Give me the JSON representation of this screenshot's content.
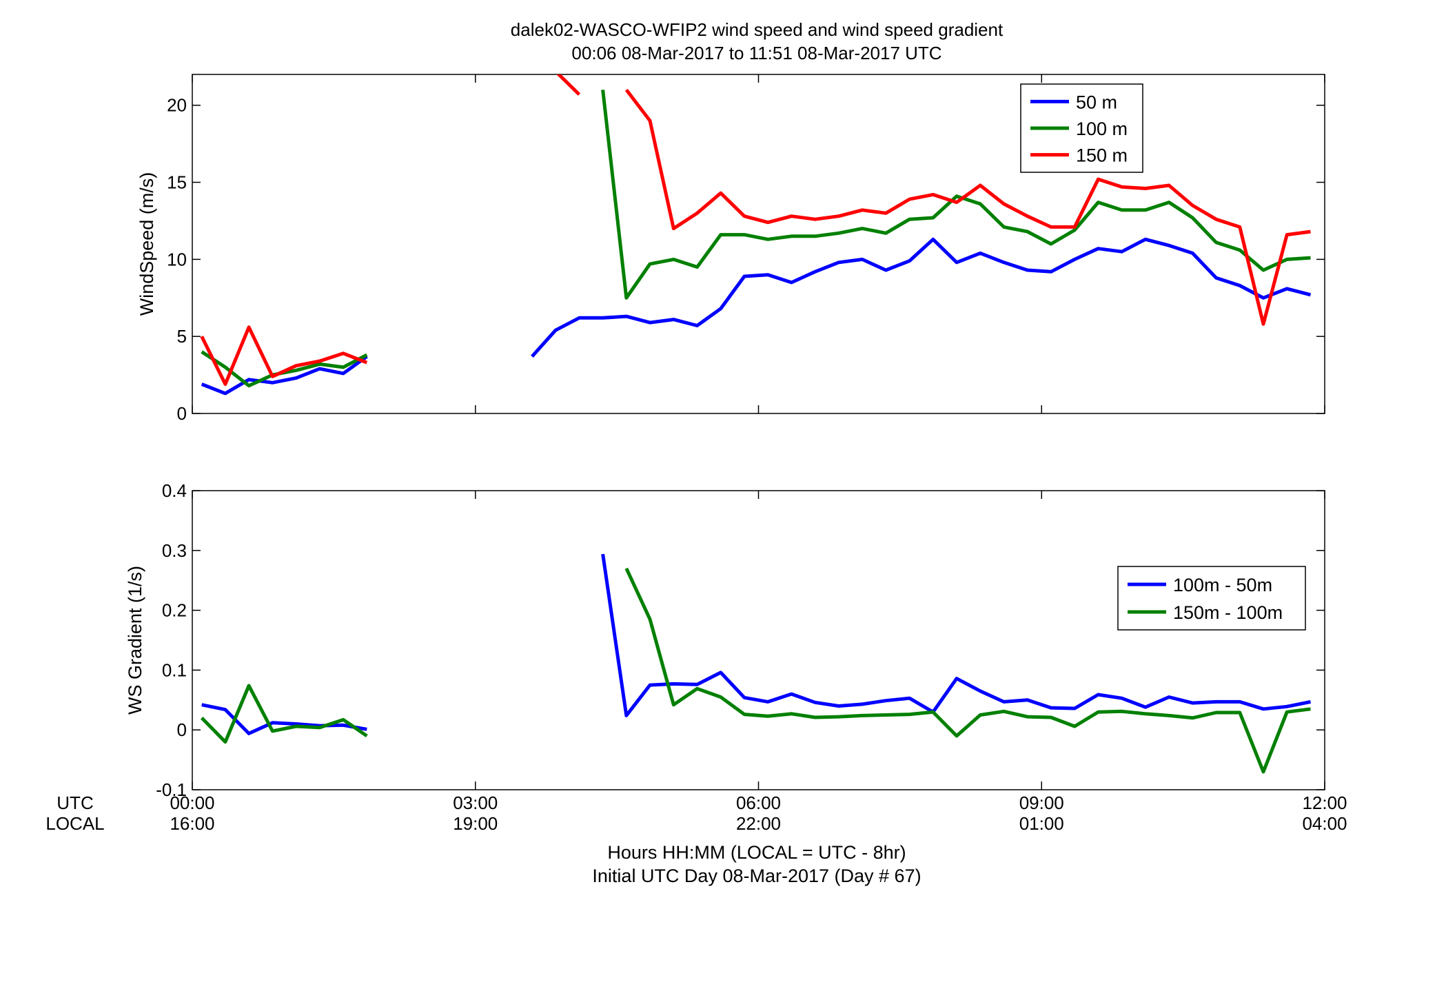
{
  "figure": {
    "title_line1": "dalek02-WASCO-WFIP2  wind speed and wind speed gradient",
    "title_line2": "00:06 08-Mar-2017 to 11:51 08-Mar-2017  UTC",
    "row_label_utc": "UTC",
    "row_label_local": "LOCAL",
    "xlabel_line1": "Hours HH:MM  (LOCAL = UTC - 8hr)",
    "xlabel_line2": "Initial UTC Day 08-Mar-2017 (Day # 67)",
    "utc_ticks": [
      "00:00",
      "03:00",
      "06:00",
      "09:00",
      "12:00"
    ],
    "local_ticks": [
      "16:00",
      "19:00",
      "22:00",
      "01:00",
      "04:00"
    ]
  },
  "chart_data": [
    {
      "type": "line",
      "title": "",
      "xlabel": "",
      "ylabel": "WindSpeed (m/s)",
      "xlim": [
        0,
        12
      ],
      "ylim": [
        0,
        22
      ],
      "yticks": [
        "0",
        "5",
        "10",
        "15",
        "20"
      ],
      "xtick_hours": [
        0,
        3,
        6,
        9,
        12
      ],
      "grid": false,
      "legend_position": "top-right",
      "series": [
        {
          "name": "50 m",
          "color": "#0000ff",
          "x": [
            0.1,
            0.35,
            0.6,
            0.85,
            1.1,
            1.35,
            1.6,
            1.85,
            null,
            3.6,
            3.85,
            4.1,
            4.35,
            4.6,
            4.85,
            5.1,
            5.35,
            5.6,
            5.85,
            6.1,
            6.35,
            6.6,
            6.85,
            7.1,
            7.35,
            7.6,
            7.85,
            8.1,
            8.35,
            8.6,
            8.85,
            9.1,
            9.35,
            9.6,
            9.85,
            10.1,
            10.35,
            10.6,
            10.85,
            11.1,
            11.35,
            11.6,
            11.85
          ],
          "y": [
            1.9,
            1.3,
            2.2,
            2.0,
            2.3,
            2.9,
            2.6,
            3.7,
            null,
            3.7,
            5.4,
            6.2,
            6.2,
            6.3,
            5.9,
            6.1,
            5.7,
            6.8,
            8.9,
            9.0,
            8.5,
            9.2,
            9.8,
            10.0,
            9.3,
            9.9,
            11.3,
            9.8,
            10.4,
            9.8,
            9.3,
            9.2,
            10.0,
            10.7,
            10.5,
            11.3,
            10.9,
            10.4,
            8.8,
            8.3,
            7.5,
            8.1,
            7.7
          ]
        },
        {
          "name": "100 m",
          "color": "#008000",
          "x": [
            0.1,
            0.35,
            0.6,
            0.85,
            1.1,
            1.35,
            1.6,
            1.85,
            null,
            4.35,
            4.6,
            4.85,
            5.1,
            5.35,
            5.6,
            5.85,
            6.1,
            6.35,
            6.6,
            6.85,
            7.1,
            7.35,
            7.6,
            7.85,
            8.1,
            8.35,
            8.6,
            8.85,
            9.1,
            9.35,
            9.6,
            9.85,
            10.1,
            10.35,
            10.6,
            10.85,
            11.1,
            11.35,
            11.6,
            11.85
          ],
          "y": [
            4.0,
            3.0,
            1.8,
            2.5,
            2.8,
            3.2,
            3.0,
            3.8,
            null,
            21.0,
            7.5,
            9.7,
            10.0,
            9.5,
            11.6,
            11.6,
            11.3,
            11.5,
            11.5,
            11.7,
            12.0,
            11.7,
            12.6,
            12.7,
            14.1,
            13.6,
            12.1,
            11.8,
            11.0,
            11.9,
            13.7,
            13.2,
            13.2,
            13.7,
            12.7,
            11.1,
            10.6,
            9.3,
            10.0,
            10.1
          ]
        },
        {
          "name": "150 m",
          "color": "#ff0000",
          "x": [
            0.1,
            0.35,
            0.6,
            0.85,
            1.1,
            1.35,
            1.6,
            1.85,
            null,
            3.85,
            4.1,
            null,
            4.6,
            4.85,
            5.1,
            5.35,
            5.6,
            5.85,
            6.1,
            6.35,
            6.6,
            6.85,
            7.1,
            7.35,
            7.6,
            7.85,
            8.1,
            8.35,
            8.6,
            8.85,
            9.1,
            9.35,
            9.6,
            9.85,
            10.1,
            10.35,
            10.6,
            10.85,
            11.1,
            11.35,
            11.6,
            11.85
          ],
          "y": [
            5.0,
            1.9,
            5.6,
            2.4,
            3.1,
            3.4,
            3.9,
            3.3,
            null,
            22.2,
            20.7,
            null,
            21.0,
            19.0,
            12.0,
            13.0,
            14.3,
            12.8,
            12.4,
            12.8,
            12.6,
            12.8,
            13.2,
            13.0,
            13.9,
            14.2,
            13.7,
            14.8,
            13.6,
            12.8,
            12.1,
            12.1,
            15.2,
            14.7,
            14.6,
            14.8,
            13.5,
            12.6,
            12.1,
            5.8,
            11.6,
            11.8
          ]
        }
      ]
    },
    {
      "type": "line",
      "title": "",
      "xlabel": "",
      "ylabel": "WS Gradient (1/s)",
      "xlim": [
        0,
        12
      ],
      "ylim": [
        -0.1,
        0.4
      ],
      "yticks": [
        "-0.1",
        "0",
        "0.1",
        "0.2",
        "0.3",
        "0.4"
      ],
      "xtick_hours": [
        0,
        3,
        6,
        9,
        12
      ],
      "grid": false,
      "legend_position": "right",
      "series": [
        {
          "name": "100m - 50m",
          "color": "#0000ff",
          "x": [
            0.1,
            0.35,
            0.6,
            0.85,
            1.1,
            1.35,
            1.6,
            1.85,
            null,
            4.35,
            4.6,
            4.85,
            5.1,
            5.35,
            5.6,
            5.85,
            6.1,
            6.35,
            6.6,
            6.85,
            7.1,
            7.35,
            7.6,
            7.85,
            8.1,
            8.35,
            8.6,
            8.85,
            9.1,
            9.35,
            9.6,
            9.85,
            10.1,
            10.35,
            10.6,
            10.85,
            11.1,
            11.35,
            11.6,
            11.85
          ],
          "y": [
            0.042,
            0.034,
            -0.006,
            0.012,
            0.01,
            0.007,
            0.008,
            0.001,
            null,
            0.294,
            0.024,
            0.075,
            0.077,
            0.076,
            0.096,
            0.054,
            0.047,
            0.06,
            0.046,
            0.04,
            0.043,
            0.049,
            0.053,
            0.03,
            0.086,
            0.065,
            0.047,
            0.05,
            0.037,
            0.036,
            0.059,
            0.053,
            0.038,
            0.055,
            0.045,
            0.047,
            0.047,
            0.035,
            0.039,
            0.047
          ]
        },
        {
          "name": "150m - 100m",
          "color": "#008000",
          "x": [
            0.1,
            0.35,
            0.6,
            0.85,
            1.1,
            1.35,
            1.6,
            1.85,
            null,
            4.6,
            4.85,
            5.1,
            5.35,
            5.6,
            5.85,
            6.1,
            6.35,
            6.6,
            6.85,
            7.1,
            7.35,
            7.6,
            7.85,
            8.1,
            8.35,
            8.6,
            8.85,
            9.1,
            9.35,
            9.6,
            9.85,
            10.1,
            10.35,
            10.6,
            10.85,
            11.1,
            11.35,
            11.6,
            11.85
          ],
          "y": [
            0.02,
            -0.02,
            0.074,
            -0.002,
            0.006,
            0.004,
            0.017,
            -0.01,
            null,
            0.27,
            0.185,
            0.042,
            0.069,
            0.055,
            0.026,
            0.023,
            0.027,
            0.021,
            0.022,
            0.024,
            0.025,
            0.026,
            0.03,
            -0.01,
            0.025,
            0.031,
            0.022,
            0.021,
            0.006,
            0.03,
            0.031,
            0.027,
            0.024,
            0.02,
            0.029,
            0.029,
            -0.07,
            0.03,
            0.035
          ]
        }
      ]
    }
  ]
}
